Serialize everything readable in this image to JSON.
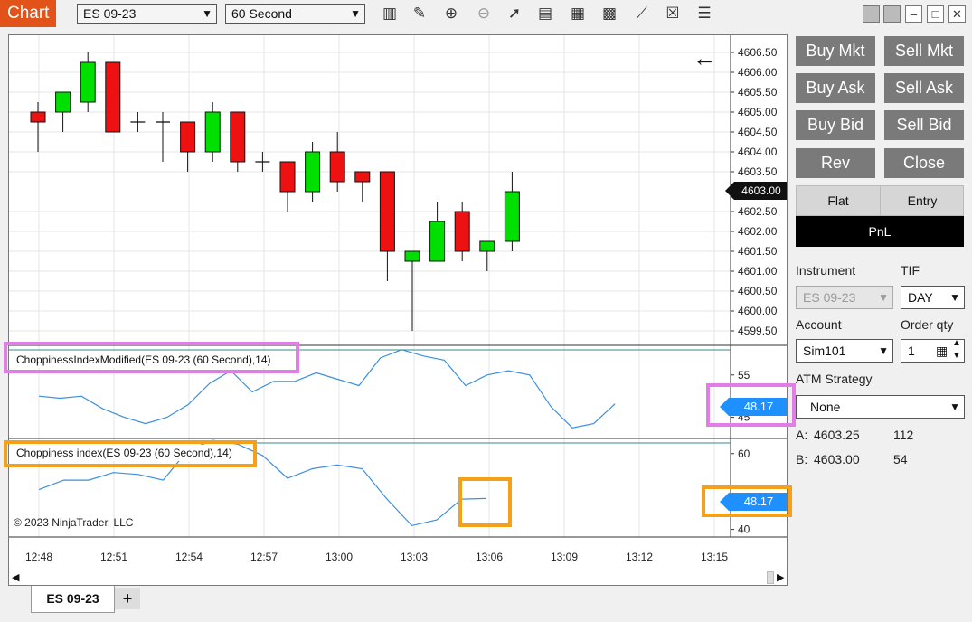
{
  "toolbar": {
    "title": "Chart",
    "instrument": "ES 09-23",
    "interval": "60 Second",
    "icons": [
      "bar-type-icon",
      "draw-pencil-icon",
      "zoom-in-icon",
      "zoom-out-icon",
      "pointer-icon",
      "data-box-icon",
      "indicators-icon",
      "strategies-icon",
      "line-tools-icon",
      "properties-icon",
      "menu-icon"
    ],
    "window_buttons": [
      "tile-icon",
      "tile-icon",
      "minimize-icon",
      "maximize-icon",
      "close-icon"
    ]
  },
  "chart": {
    "price_labels": [
      "4606.50",
      "4606.00",
      "4605.50",
      "4605.00",
      "4604.50",
      "4604.00",
      "4603.50",
      "4602.50",
      "4602.00",
      "4601.50",
      "4601.00",
      "4600.50",
      "4600.00",
      "4599.50"
    ],
    "last_price": "4603.00",
    "time_labels": [
      "12:48",
      "12:51",
      "12:54",
      "12:57",
      "13:00",
      "13:03",
      "13:06",
      "13:09",
      "13:12",
      "13:15"
    ],
    "copyright": "© 2023 NinjaTrader, LLC",
    "panel1_title": "ChoppinessIndexModified(ES 09-23 (60 Second),14)",
    "panel1_ticks": [
      "55",
      "45"
    ],
    "panel1_value": "48.17",
    "panel2_title": "Choppiness index(ES 09-23 (60 Second),14)",
    "panel2_ticks": [
      "60",
      "40"
    ],
    "panel2_value": "48.17",
    "tab_label": "ES 09-23",
    "add_tab": "+",
    "colors": {
      "up": "#00e000",
      "down": "#ee1111",
      "line": "#3b8fe0",
      "accent": "#e2531a"
    }
  },
  "chart_data": {
    "type": "candlestick",
    "instrument": "ES 09-23",
    "ylim": [
      4599.25,
      4606.75
    ],
    "candles": [
      {
        "o": 4605.0,
        "h": 4605.25,
        "l": 4604.0,
        "c": 4604.75
      },
      {
        "o": 4605.0,
        "h": 4605.5,
        "l": 4604.5,
        "c": 4605.5
      },
      {
        "o": 4605.25,
        "h": 4606.5,
        "l": 4605.0,
        "c": 4606.25
      },
      {
        "o": 4606.25,
        "h": 4606.25,
        "l": 4604.5,
        "c": 4604.5
      },
      {
        "o": 4604.75,
        "h": 4605.0,
        "l": 4604.5,
        "c": 4604.75
      },
      {
        "o": 4604.75,
        "h": 4605.0,
        "l": 4603.75,
        "c": 4604.75
      },
      {
        "o": 4604.75,
        "h": 4604.75,
        "l": 4603.5,
        "c": 4604.0
      },
      {
        "o": 4604.0,
        "h": 4605.25,
        "l": 4603.75,
        "c": 4605.0
      },
      {
        "o": 4605.0,
        "h": 4605.0,
        "l": 4603.5,
        "c": 4603.75
      },
      {
        "o": 4603.75,
        "h": 4604.0,
        "l": 4603.5,
        "c": 4603.75
      },
      {
        "o": 4603.75,
        "h": 4603.75,
        "l": 4602.5,
        "c": 4603.0
      },
      {
        "o": 4603.0,
        "h": 4604.25,
        "l": 4602.75,
        "c": 4604.0
      },
      {
        "o": 4604.0,
        "h": 4604.5,
        "l": 4603.0,
        "c": 4603.25
      },
      {
        "o": 4603.5,
        "h": 4603.5,
        "l": 4602.75,
        "c": 4603.25
      },
      {
        "o": 4603.5,
        "h": 4603.5,
        "l": 4600.75,
        "c": 4601.5
      },
      {
        "o": 4601.25,
        "h": 4601.5,
        "l": 4599.5,
        "c": 4601.5
      },
      {
        "o": 4601.25,
        "h": 4602.75,
        "l": 4601.25,
        "c": 4602.25
      },
      {
        "o": 4602.5,
        "h": 4602.75,
        "l": 4601.25,
        "c": 4601.5
      },
      {
        "o": 4601.5,
        "h": 4601.75,
        "l": 4601.0,
        "c": 4601.75
      },
      {
        "o": 4601.75,
        "h": 4603.5,
        "l": 4601.5,
        "c": 4603.0
      }
    ],
    "series": [
      {
        "name": "ChoppinessIndexModified(ES 09-23 (60 Second),14)",
        "ylim": [
          40,
          62
        ],
        "values": [
          50,
          49.5,
          50,
          47,
          45,
          43.5,
          45,
          48,
          53,
          56,
          51,
          53.5,
          53.5,
          55.5,
          54,
          52.5,
          59,
          61,
          59.5,
          58.5,
          52.5,
          55,
          56,
          55,
          47.5,
          42.5,
          43.5,
          48.17
        ]
      },
      {
        "name": "Choppiness index(ES 09-23 (60 Second),14)",
        "ylim": [
          38,
          64
        ],
        "values": [
          50.5,
          53,
          53,
          55,
          54.5,
          53,
          61,
          63.5,
          62.5,
          59.5,
          53.5,
          56,
          57,
          56,
          48,
          41,
          42.5,
          48,
          48.17
        ]
      }
    ]
  },
  "order_panel": {
    "buttons": [
      "Buy Mkt",
      "Sell Mkt",
      "Buy Ask",
      "Sell Ask",
      "Buy Bid",
      "Sell Bid",
      "Rev",
      "Close"
    ],
    "position_tabs": [
      "Flat",
      "Entry"
    ],
    "pnl_label": "PnL",
    "instrument_label": "Instrument",
    "tif_label": "TIF",
    "instrument_value": "ES 09-23",
    "tif_value": "DAY",
    "account_label": "Account",
    "order_qty_label": "Order qty",
    "account_value": "Sim101",
    "order_qty_value": "1",
    "atm_label": "ATM Strategy",
    "atm_value": "None",
    "ask_label": "A:",
    "ask_price": "4603.25",
    "ask_size": "112",
    "bid_label": "B:",
    "bid_price": "4603.00",
    "bid_size": "54"
  }
}
